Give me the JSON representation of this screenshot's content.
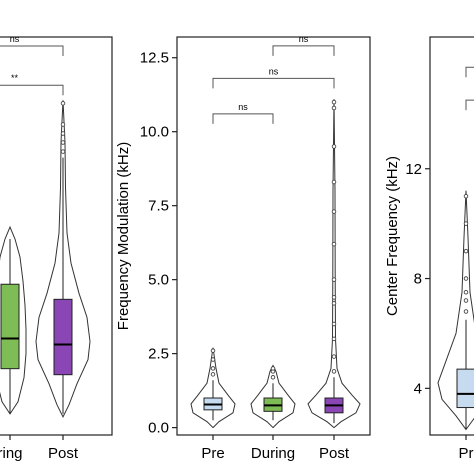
{
  "colors": {
    "pre": "#c6dbef",
    "during": "#7ebc55",
    "post": "#8a46b4",
    "outline": "#333333",
    "bracket": "#555555"
  },
  "chart_data": [
    {
      "type": "violin",
      "panel": "left",
      "ylabel": "",
      "categories": [
        "During",
        "Post"
      ],
      "category_labels": [
        "ring",
        "Post"
      ],
      "ylim": [
        0.3,
        13.5
      ],
      "yticks": [],
      "boxes": [
        {
          "category": "During",
          "q1": 2.5,
          "median": 3.5,
          "q3": 5.3,
          "whisker_low": 1.0,
          "whisker_high": 6.8,
          "color_key": "during"
        },
        {
          "category": "Post",
          "q1": 2.3,
          "median": 3.3,
          "q3": 4.8,
          "whisker_low": 1.0,
          "whisker_high": 9.5,
          "color_key": "post"
        }
      ],
      "outliers": [
        {
          "category": "Post",
          "values": [
            9.7,
            10.0,
            10.3,
            10.6,
            11.3
          ]
        }
      ],
      "significance": [
        {
          "label": "ns",
          "level": 13.2
        },
        {
          "label": "**",
          "level": 11.9
        }
      ]
    },
    {
      "type": "violin",
      "panel": "middle",
      "ylabel": "Frequency Modulation (kHz)",
      "categories": [
        "Pre",
        "During",
        "Post"
      ],
      "category_labels": [
        "Pre",
        "During",
        "Post"
      ],
      "ylim": [
        -0.25,
        13.2
      ],
      "yticks": [
        "0.0",
        "2.5",
        "5.0",
        "7.5",
        "10.0",
        "12.5"
      ],
      "ytick_values": [
        0,
        2.5,
        5,
        7.5,
        10,
        12.5
      ],
      "boxes": [
        {
          "category": "Pre",
          "q1": 0.6,
          "median": 0.78,
          "q3": 1.0,
          "whisker_low": 0.25,
          "whisker_high": 1.6,
          "color_key": "pre"
        },
        {
          "category": "During",
          "q1": 0.55,
          "median": 0.75,
          "q3": 1.0,
          "whisker_low": 0.25,
          "whisker_high": 1.5,
          "color_key": "during"
        },
        {
          "category": "Post",
          "q1": 0.5,
          "median": 0.75,
          "q3": 1.0,
          "whisker_low": 0.15,
          "whisker_high": 1.7,
          "color_key": "post"
        }
      ],
      "outliers": [
        {
          "category": "Pre",
          "values": [
            1.8,
            2.0,
            2.3,
            2.6
          ]
        },
        {
          "category": "During",
          "values": [
            1.7,
            1.9,
            2.0
          ]
        },
        {
          "category": "Post",
          "values": [
            1.9,
            2.4,
            3.0,
            3.5,
            4.2,
            4.4,
            5.0,
            6.2,
            7.3,
            8.3,
            9.5,
            10.8,
            11.0
          ]
        }
      ],
      "significance": [
        {
          "label": "ns",
          "from": "Pre",
          "to": "During",
          "level": 10.6
        },
        {
          "label": "ns",
          "from": "Pre",
          "to": "Post",
          "level": 11.8
        },
        {
          "label": "ns",
          "from": "During",
          "to": "Post",
          "level": 12.9
        }
      ]
    },
    {
      "type": "violin",
      "panel": "right",
      "ylabel": "Center Frequency (kHz)",
      "categories": [
        "Pre"
      ],
      "category_labels": [
        "Pr"
      ],
      "ylim": [
        2.3,
        16.8
      ],
      "yticks": [
        "4",
        "8",
        "12"
      ],
      "ytick_values": [
        4,
        8,
        12
      ],
      "boxes": [
        {
          "category": "Pre",
          "q1": 3.3,
          "median": 3.8,
          "q3": 4.7,
          "whisker_low": 2.5,
          "whisker_high": 6.5,
          "color_key": "pre"
        }
      ],
      "outliers": [
        {
          "category": "Pre",
          "values": [
            6.8,
            7.2,
            7.5,
            8.0,
            9.0,
            10.0,
            11.0
          ]
        }
      ],
      "significance": [
        {
          "label": "",
          "level": 15.7
        },
        {
          "label": "",
          "level": 14.5
        }
      ]
    }
  ]
}
